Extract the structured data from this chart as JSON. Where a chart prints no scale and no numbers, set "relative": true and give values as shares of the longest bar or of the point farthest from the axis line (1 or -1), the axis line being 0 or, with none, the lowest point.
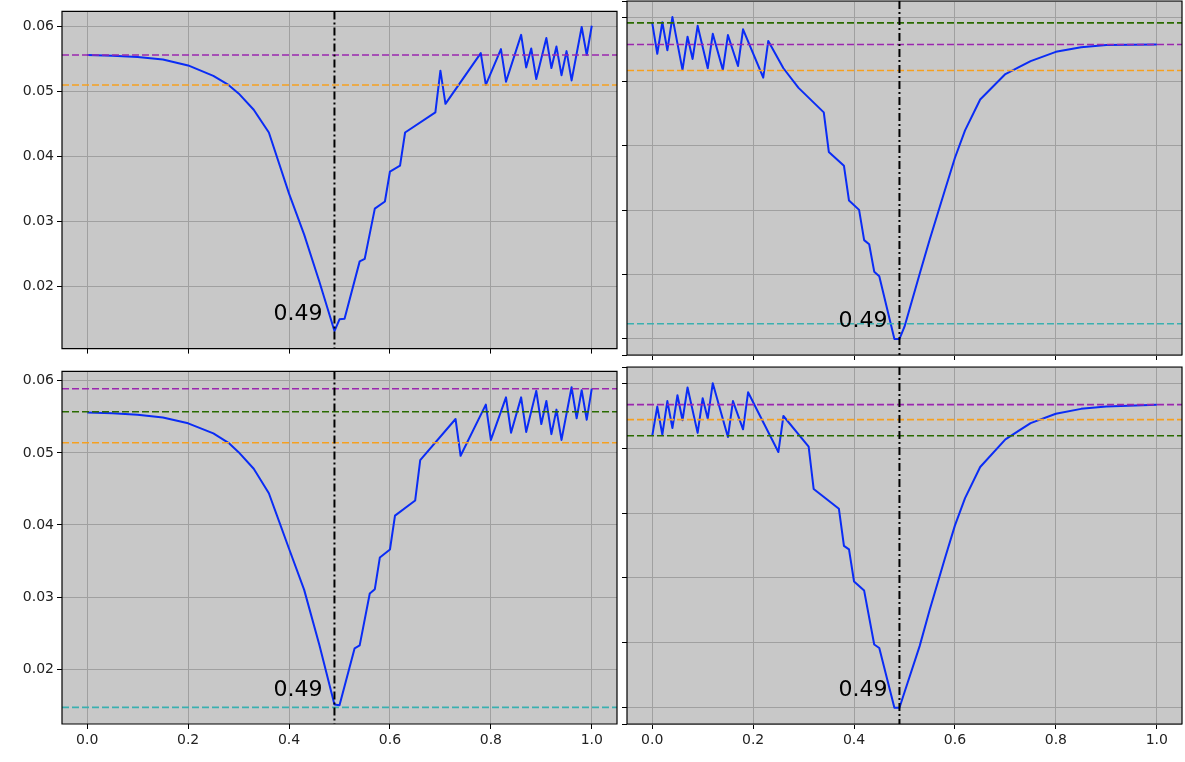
{
  "chart_data": [
    {
      "type": "line",
      "x": [
        0,
        0.05,
        0.1,
        0.15,
        0.2,
        0.25,
        0.28,
        0.3,
        0.33,
        0.36,
        0.4,
        0.43,
        0.46,
        0.49,
        0.5,
        0.51,
        0.54,
        0.55,
        0.57,
        0.59,
        0.6,
        0.62,
        0.63,
        0.69,
        0.7,
        0.71,
        0.78,
        0.79,
        0.82,
        0.83,
        0.86,
        0.87,
        0.88,
        0.89,
        0.91,
        0.92,
        0.93,
        0.94,
        0.95,
        0.96,
        0.98,
        0.99,
        1.0
      ],
      "series": [
        {
          "color": "#0a2cf5",
          "values": [
            0.0556,
            0.0555,
            0.0553,
            0.0549,
            0.054,
            0.0524,
            0.051,
            0.0497,
            0.0472,
            0.0437,
            0.0343,
            0.028,
            0.0208,
            0.0132,
            0.015,
            0.0151,
            0.0239,
            0.0243,
            0.032,
            0.0331,
            0.0377,
            0.0386,
            0.0437,
            0.0468,
            0.0532,
            0.0481,
            0.0559,
            0.051,
            0.0565,
            0.0515,
            0.0587,
            0.0537,
            0.0566,
            0.0519,
            0.0582,
            0.0536,
            0.0569,
            0.0525,
            0.0562,
            0.0517,
            0.0599,
            0.0556,
            0.0601
          ]
        }
      ],
      "xlim": [
        -0.05,
        1.05
      ],
      "xticks": [
        {
          "value": 0,
          "label": null
        },
        {
          "value": 0.2,
          "label": null
        },
        {
          "value": 0.4,
          "label": null
        },
        {
          "value": 0.6,
          "label": null
        },
        {
          "value": 0.8,
          "label": null
        },
        {
          "value": 1,
          "label": null
        }
      ],
      "ylim": [
        0.0105,
        0.0623
      ],
      "yticks": [
        0.02,
        0.03,
        0.04,
        0.05,
        0.06
      ],
      "grid": true,
      "tick_labels": "y",
      "ref_lines": [
        {
          "axis": "y",
          "value": 0.0556,
          "color": "#9b27af",
          "line_style": "dashed"
        },
        {
          "axis": "y",
          "value": 0.051,
          "color": "#f5a020",
          "line_style": "dashed"
        },
        {
          "axis": "x",
          "value": 0.49,
          "color": "#000000",
          "line_style": "dashdot",
          "label": "0.49"
        }
      ]
    },
    {
      "type": "line",
      "relative": true,
      "x": [
        0,
        0.01,
        0.02,
        0.03,
        0.04,
        0.06,
        0.07,
        0.08,
        0.09,
        0.11,
        0.12,
        0.14,
        0.15,
        0.17,
        0.18,
        0.22,
        0.23,
        0.26,
        0.29,
        0.34,
        0.35,
        0.38,
        0.39,
        0.41,
        0.42,
        0.43,
        0.44,
        0.45,
        0.48,
        0.49,
        0.5,
        0.53,
        0.55,
        0.58,
        0.6,
        0.62,
        0.65,
        0.7,
        0.75,
        0.8,
        0.85,
        0.9,
        1.0
      ],
      "series": [
        {
          "color": "#0a2cf5",
          "values": [
            0.982,
            0.886,
            0.984,
            0.897,
            1,
            0.836,
            0.939,
            0.87,
            0.973,
            0.841,
            0.948,
            0.836,
            0.944,
            0.848,
            0.962,
            0.812,
            0.926,
            0.841,
            0.78,
            0.704,
            0.581,
            0.538,
            0.43,
            0.401,
            0.307,
            0.294,
            0.209,
            0.195,
            0,
            0,
            0.038,
            0.202,
            0.309,
            0.462,
            0.563,
            0.648,
            0.744,
            0.823,
            0.863,
            0.892,
            0.906,
            0.913,
            0.915
          ]
        }
      ],
      "xlim": [
        -0.05,
        1.05
      ],
      "xticks": [
        {
          "value": 0,
          "label": null
        },
        {
          "value": 0.2,
          "label": null
        },
        {
          "value": 0.4,
          "label": null
        },
        {
          "value": 0.6,
          "label": null
        },
        {
          "value": 0.8,
          "label": null
        },
        {
          "value": 1,
          "label": null
        }
      ],
      "grid": true,
      "tick_labels": false,
      "ref_lines": [
        {
          "axis": "y",
          "value": 0.982,
          "color": "#2a6b00",
          "line_style": "dashed"
        },
        {
          "axis": "y",
          "value": 0.915,
          "color": "#9b27af",
          "line_style": "dashed"
        },
        {
          "axis": "y",
          "value": 0.834,
          "color": "#f5a020",
          "line_style": "dashed"
        },
        {
          "axis": "y",
          "value": 0.047,
          "color": "#3ab0b0",
          "line_style": "dashed"
        },
        {
          "axis": "x",
          "value": 0.49,
          "color": "#000000",
          "line_style": "dashdot",
          "label": "0.49"
        }
      ]
    },
    {
      "type": "line",
      "x": [
        0,
        0.05,
        0.1,
        0.15,
        0.2,
        0.25,
        0.28,
        0.3,
        0.33,
        0.36,
        0.4,
        0.43,
        0.46,
        0.49,
        0.5,
        0.53,
        0.54,
        0.56,
        0.57,
        0.58,
        0.6,
        0.61,
        0.65,
        0.66,
        0.73,
        0.74,
        0.79,
        0.8,
        0.83,
        0.84,
        0.86,
        0.87,
        0.89,
        0.9,
        0.91,
        0.92,
        0.93,
        0.94,
        0.96,
        0.97,
        0.98,
        0.99,
        1.0
      ],
      "series": [
        {
          "color": "#0a2cf5",
          "values": [
            0.0556,
            0.0555,
            0.0553,
            0.0549,
            0.0541,
            0.0527,
            0.0514,
            0.0501,
            0.0478,
            0.0444,
            0.0367,
            0.031,
            0.0234,
            0.0151,
            0.015,
            0.0229,
            0.0233,
            0.0305,
            0.0311,
            0.0355,
            0.0366,
            0.0413,
            0.0434,
            0.049,
            0.0547,
            0.0496,
            0.0567,
            0.0518,
            0.0577,
            0.0528,
            0.0577,
            0.0529,
            0.0586,
            0.054,
            0.0572,
            0.0526,
            0.056,
            0.0518,
            0.0591,
            0.0548,
            0.0587,
            0.0546,
            0.0589
          ]
        }
      ],
      "xlim": [
        -0.05,
        1.05
      ],
      "xticks": [
        {
          "value": 0,
          "label": "0.0"
        },
        {
          "value": 0.2,
          "label": "0.2"
        },
        {
          "value": 0.4,
          "label": "0.4"
        },
        {
          "value": 0.6,
          "label": "0.6"
        },
        {
          "value": 0.8,
          "label": "0.8"
        },
        {
          "value": 1,
          "label": "1.0"
        }
      ],
      "ylim": [
        0.0124,
        0.0613
      ],
      "yticks": [
        0.02,
        0.03,
        0.04,
        0.05,
        0.06
      ],
      "grid": true,
      "ref_lines": [
        {
          "axis": "y",
          "value": 0.0589,
          "color": "#9b27af",
          "line_style": "dashed"
        },
        {
          "axis": "y",
          "value": 0.0557,
          "color": "#2a6b00",
          "line_style": "dashed"
        },
        {
          "axis": "y",
          "value": 0.0514,
          "color": "#f5a020",
          "line_style": "dashed"
        },
        {
          "axis": "y",
          "value": 0.0147,
          "color": "#3ab0b0",
          "line_style": "dashed"
        },
        {
          "axis": "x",
          "value": 0.49,
          "color": "#000000",
          "line_style": "dashdot",
          "label": "0.49"
        }
      ]
    },
    {
      "type": "line",
      "relative": true,
      "x": [
        0,
        0.01,
        0.02,
        0.03,
        0.04,
        0.05,
        0.06,
        0.07,
        0.09,
        0.1,
        0.11,
        0.12,
        0.15,
        0.16,
        0.18,
        0.19,
        0.25,
        0.26,
        0.31,
        0.32,
        0.37,
        0.38,
        0.39,
        0.4,
        0.42,
        0.44,
        0.45,
        0.48,
        0.49,
        0.5,
        0.53,
        0.55,
        0.58,
        0.6,
        0.62,
        0.65,
        0.7,
        0.75,
        0.8,
        0.85,
        0.9,
        1.0
      ],
      "series": [
        {
          "color": "#0a2cf5",
          "values": [
            0.838,
            0.928,
            0.842,
            0.945,
            0.862,
            0.963,
            0.886,
            0.987,
            0.847,
            0.954,
            0.891,
            1,
            0.834,
            0.945,
            0.858,
            0.972,
            0.788,
            0.899,
            0.805,
            0.674,
            0.613,
            0.499,
            0.488,
            0.389,
            0.361,
            0.195,
            0.184,
            0,
            0,
            0.048,
            0.19,
            0.302,
            0.46,
            0.562,
            0.646,
            0.742,
            0.827,
            0.877,
            0.906,
            0.921,
            0.928,
            0.934
          ]
        }
      ],
      "xlim": [
        -0.05,
        1.05
      ],
      "xticks": [
        {
          "value": 0,
          "label": "0.0"
        },
        {
          "value": 0.2,
          "label": "0.2"
        },
        {
          "value": 0.4,
          "label": "0.4"
        },
        {
          "value": 0.6,
          "label": "0.6"
        },
        {
          "value": 0.8,
          "label": "0.8"
        },
        {
          "value": 1,
          "label": "1.0"
        }
      ],
      "grid": true,
      "tick_labels": "x",
      "ref_lines": [
        {
          "axis": "y",
          "value": 0.934,
          "color": "#9b27af",
          "line_style": "dashed"
        },
        {
          "axis": "y",
          "value": 0.888,
          "color": "#f5a020",
          "line_style": "dashed"
        },
        {
          "axis": "y",
          "value": 0.838,
          "color": "#2a6b00",
          "line_style": "dashed"
        },
        {
          "axis": "x",
          "value": 0.49,
          "color": "#000000",
          "line_style": "dashdot",
          "label": "0.49"
        }
      ]
    }
  ]
}
